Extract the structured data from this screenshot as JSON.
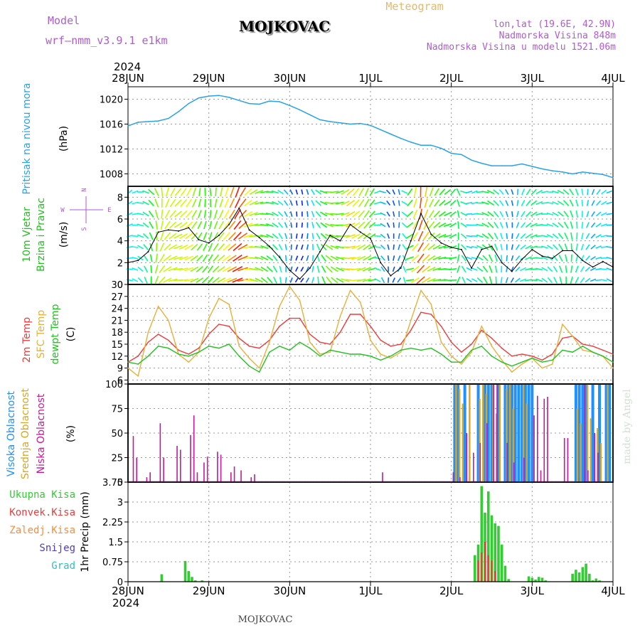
{
  "header": {
    "model_label": "Model",
    "model_name": "wrf–nmm_v3.9.1  e1km",
    "title": "MOJKOVAC",
    "meteogram_label": "Meteogram",
    "lonlat": "lon,lat (19.6E, 42.9N)",
    "altitude": "Nadmorska Visina 848m",
    "model_altitude": "Nadmorska Visina u modelu 1521.06m",
    "year_top": "2024",
    "year_bottom": "2024",
    "footer_station": "MOJKOVAC",
    "credit": "made by Angel",
    "compass": {
      "n": "N",
      "s": "S",
      "w": "W",
      "e": "E"
    }
  },
  "colors": {
    "pressure": "#29a3e6",
    "temp2m": "#ee3b3b",
    "sfc_temp": "#e8b038",
    "dewpt": "#22c21e",
    "high_cloud": "#1e90ff",
    "mid_cloud": "#daa520",
    "low_cloud": "#c21a9a",
    "total_precip": "#33cc33",
    "conv_precip": "#ee3b3b",
    "frozen_precip": "#ff8c3a",
    "snow": "#4b3ad6",
    "hail": "#2ac2c2"
  },
  "chart_data": [
    {
      "type": "line",
      "panel": "pressure",
      "title": "Pritisak na nivou mora",
      "ylabel": "(hPa)",
      "ylim": [
        1006,
        1022
      ],
      "yticks": [
        "1008",
        "1012",
        "1016",
        "1020"
      ],
      "xlim": [
        0,
        144
      ],
      "xtick_labels": [
        "28JUN",
        "29JUN",
        "30JUN",
        "1JUL",
        "2JUL",
        "3JUL",
        "4JUL"
      ],
      "grid": true,
      "x_hours": [
        0,
        3,
        6,
        9,
        12,
        15,
        18,
        21,
        24,
        27,
        30,
        33,
        36,
        39,
        42,
        45,
        48,
        51,
        54,
        57,
        60,
        63,
        66,
        69,
        72,
        75,
        78,
        81,
        84,
        87,
        90,
        93,
        96,
        99,
        102,
        105,
        108,
        111,
        114,
        117,
        120,
        123,
        126,
        129,
        132,
        135,
        138,
        141,
        144
      ],
      "values": [
        1015.7,
        1016.3,
        1016.4,
        1016.5,
        1016.9,
        1018.0,
        1019.3,
        1020.2,
        1020.5,
        1020.6,
        1020.3,
        1019.8,
        1019.3,
        1019.2,
        1019.7,
        1019.6,
        1019.0,
        1018.3,
        1017.5,
        1016.7,
        1016.4,
        1016.2,
        1016.0,
        1016.1,
        1015.8,
        1015.1,
        1014.4,
        1013.7,
        1013.1,
        1012.6,
        1012.6,
        1012.1,
        1011.3,
        1011.1,
        1010.2,
        1009.7,
        1009.3,
        1009.3,
        1009.3,
        1009.6,
        1009.2,
        1008.8,
        1008.5,
        1008.3,
        1008.0,
        1008.3,
        1008.1,
        1007.9,
        1007.4
      ]
    },
    {
      "type": "line",
      "panel": "wind",
      "title": "10m Vjetar",
      "subtitle": "Brzina i Pravac",
      "ylabel": "(m/s)",
      "ylim": [
        0,
        9
      ],
      "yticks": [
        "0",
        "2",
        "4",
        "6",
        "8"
      ],
      "xlim": [
        0,
        144
      ],
      "grid": true,
      "x_hours": [
        0,
        3,
        6,
        9,
        12,
        15,
        18,
        21,
        24,
        27,
        30,
        33,
        36,
        39,
        42,
        45,
        48,
        51,
        54,
        57,
        60,
        63,
        66,
        69,
        72,
        75,
        78,
        81,
        84,
        87,
        90,
        93,
        96,
        99,
        102,
        105,
        108,
        111,
        114,
        117,
        120,
        123,
        126,
        129,
        132,
        135,
        138,
        141,
        144
      ],
      "speed": [
        2.0,
        2.2,
        3.0,
        4.8,
        5.0,
        4.9,
        5.2,
        4.1,
        3.8,
        4.5,
        5.5,
        7.0,
        5.0,
        4.3,
        3.5,
        2.5,
        1.3,
        0.5,
        1.5,
        3.0,
        4.5,
        4.0,
        5.5,
        4.8,
        4.2,
        2.0,
        0.8,
        1.5,
        4.0,
        6.5,
        4.6,
        3.8,
        3.4,
        3.2,
        1.5,
        3.2,
        3.5,
        2.0,
        1.2,
        2.3,
        3.2,
        2.6,
        2.4,
        3.1,
        3.1,
        2.2,
        1.6,
        2.1,
        1.6
      ],
      "direction_deg": [
        45,
        80,
        120,
        160,
        200,
        220,
        210,
        190,
        170,
        190,
        200,
        200,
        230,
        250,
        270,
        300,
        330,
        350,
        340,
        300,
        270,
        250,
        230,
        210,
        200,
        270,
        330,
        350,
        200,
        180,
        200,
        220,
        240,
        120,
        60,
        90,
        120,
        140,
        160,
        200,
        220,
        250,
        280,
        300,
        330,
        350,
        20,
        50,
        80
      ]
    },
    {
      "type": "line",
      "panel": "temperature",
      "ylabel": "(C)",
      "ylim": [
        5,
        30
      ],
      "yticks": [
        "6",
        "9",
        "12",
        "15",
        "18",
        "21",
        "24",
        "27",
        "30"
      ],
      "xlim": [
        0,
        144
      ],
      "grid": true,
      "x_hours": [
        0,
        3,
        6,
        9,
        12,
        15,
        18,
        21,
        24,
        27,
        30,
        33,
        36,
        39,
        42,
        45,
        48,
        51,
        54,
        57,
        60,
        63,
        66,
        69,
        72,
        75,
        78,
        81,
        84,
        87,
        90,
        93,
        96,
        99,
        102,
        105,
        108,
        111,
        114,
        117,
        120,
        123,
        126,
        129,
        132,
        135,
        138,
        141,
        144
      ],
      "series": [
        {
          "name": "2m Temp",
          "values": [
            10.5,
            12.0,
            15.5,
            17.5,
            16.0,
            13.5,
            12.5,
            14.0,
            17.5,
            20.0,
            19.5,
            16.5,
            14.5,
            14.0,
            16.0,
            19.5,
            21.5,
            21.5,
            17.5,
            15.5,
            15.0,
            18.0,
            22.5,
            22.5,
            19.5,
            16.0,
            14.5,
            15.0,
            18.5,
            23.0,
            22.5,
            19.5,
            15.5,
            13.0,
            15.0,
            18.5,
            16.5,
            14.0,
            12.0,
            12.5,
            12.0,
            11.0,
            12.5,
            16.5,
            17.0,
            15.0,
            14.5,
            13.5,
            12.5
          ]
        },
        {
          "name": "SFC Temp",
          "values": [
            9.0,
            7.0,
            18.0,
            24.5,
            21.0,
            12.5,
            10.5,
            13.0,
            21.5,
            26.5,
            25.0,
            14.5,
            11.5,
            9.0,
            15.5,
            24.5,
            29.5,
            26.0,
            15.5,
            12.5,
            13.0,
            22.0,
            28.5,
            25.5,
            16.0,
            12.5,
            11.5,
            13.0,
            21.0,
            28.5,
            25.0,
            15.5,
            12.0,
            10.0,
            13.0,
            19.5,
            14.5,
            11.0,
            8.0,
            10.0,
            11.5,
            9.0,
            10.0,
            20.0,
            17.0,
            13.5,
            13.0,
            12.0,
            9.0
          ]
        },
        {
          "name": "dewpt Temp",
          "values": [
            10.5,
            10.0,
            12.0,
            14.5,
            14.0,
            12.5,
            12.0,
            13.0,
            14.5,
            14.0,
            15.0,
            12.0,
            9.5,
            8.0,
            13.0,
            14.5,
            13.5,
            15.5,
            14.0,
            12.0,
            13.5,
            13.0,
            12.5,
            12.5,
            12.0,
            11.0,
            12.0,
            13.5,
            14.0,
            13.5,
            14.0,
            12.5,
            10.5,
            10.5,
            13.5,
            14.5,
            12.0,
            10.5,
            9.5,
            10.5,
            11.5,
            10.5,
            11.0,
            13.5,
            13.0,
            14.5,
            13.0,
            12.0,
            10.5
          ]
        }
      ]
    },
    {
      "type": "bar",
      "panel": "cloud",
      "ylabel": "(%)",
      "ylim": [
        0,
        100
      ],
      "yticks": [
        "0",
        "25",
        "50",
        "75",
        "100"
      ],
      "xlim": [
        0,
        144
      ],
      "grid": true,
      "series": [
        {
          "name": "Visoka Oblacnost",
          "x_hours": [
            97,
            98,
            100,
            104,
            106,
            107,
            108,
            110,
            112,
            113,
            114,
            115,
            116,
            117,
            118,
            119,
            120,
            133,
            134,
            135,
            136,
            138,
            140,
            142,
            143
          ],
          "values": [
            100,
            100,
            100,
            100,
            100,
            100,
            100,
            100,
            100,
            100,
            100,
            100,
            100,
            100,
            100,
            100,
            100,
            100,
            100,
            100,
            100,
            100,
            100,
            100,
            100
          ]
        },
        {
          "name": "Srednja Oblacnost",
          "x_hours": [
            97,
            98,
            99,
            101,
            104,
            105,
            106,
            108,
            109,
            110,
            112,
            113,
            114,
            117,
            118,
            133,
            134,
            136,
            137,
            139,
            140,
            142
          ],
          "values": [
            100,
            95,
            80,
            100,
            85,
            100,
            90,
            100,
            70,
            100,
            95,
            100,
            75,
            100,
            80,
            75,
            60,
            100,
            65,
            55,
            40,
            100
          ]
        },
        {
          "name": "Niska Oblacnost",
          "x_hours": [
            2,
            3,
            6,
            7,
            10,
            11,
            15,
            16,
            19,
            20,
            21,
            23,
            24,
            27,
            28,
            31,
            32,
            34,
            37,
            38,
            76,
            97,
            99,
            101,
            103,
            105,
            107,
            109,
            110,
            113,
            115,
            118,
            121,
            122,
            123,
            124,
            125,
            130,
            131,
            136,
            137,
            139,
            140
          ],
          "values": [
            47,
            25,
            5,
            10,
            60,
            25,
            37,
            33,
            48,
            68,
            10,
            20,
            26,
            31,
            28,
            10,
            16,
            12,
            5,
            8,
            10,
            10,
            5,
            50,
            30,
            40,
            60,
            100,
            100,
            40,
            20,
            25,
            68,
            88,
            12,
            85,
            87,
            45,
            45,
            100,
            12,
            50,
            30
          ]
        }
      ]
    },
    {
      "type": "bar",
      "panel": "precipitation",
      "ylabel": "1hr Precip (mm)",
      "ylim": [
        0,
        3.75
      ],
      "yticks": [
        "0",
        "0.75",
        "1.5",
        "2.25",
        "3",
        "3.75"
      ],
      "xlim": [
        0,
        144
      ],
      "grid": true,
      "series": [
        {
          "name": "Ukupna Kisa",
          "x_hours": [
            10,
            17,
            18,
            19,
            20,
            22,
            103,
            104,
            105,
            106,
            107,
            108,
            109,
            110,
            111,
            112,
            113,
            119,
            120,
            121,
            122,
            123,
            124,
            132,
            133,
            134,
            135,
            136,
            137,
            138,
            139,
            140
          ],
          "values": [
            0.28,
            0.78,
            0.4,
            0.18,
            0.05,
            0.05,
            1.0,
            1.4,
            3.6,
            2.6,
            3.4,
            2.5,
            2.2,
            2.1,
            1.4,
            0.6,
            0.1,
            0.2,
            0.15,
            0.08,
            0.18,
            0.15,
            0.05,
            0.3,
            0.45,
            0.35,
            0.55,
            0.68,
            0.3,
            0.05,
            0.12,
            0.05
          ]
        },
        {
          "name": "Konvek.Kisa",
          "x_hours": [
            104,
            105,
            106,
            107,
            108,
            109
          ],
          "values": [
            0.8,
            1.1,
            1.5,
            1.0,
            0.8,
            0.4
          ]
        },
        {
          "name": "Zaledj.Kisa",
          "x_hours": [],
          "values": []
        },
        {
          "name": "Snijeg",
          "x_hours": [],
          "values": []
        },
        {
          "name": "Grad",
          "x_hours": [],
          "values": []
        }
      ]
    }
  ]
}
